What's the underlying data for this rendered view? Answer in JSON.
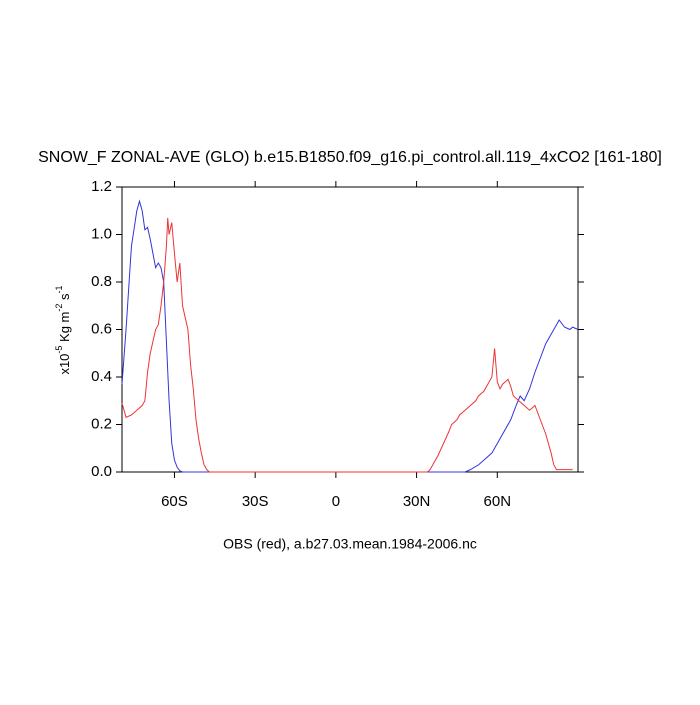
{
  "chart_data": {
    "type": "line",
    "title": "SNOW_F ZONAL-AVE (GLO) b.e15.B1850.f09_g16.pi_control.all.119_4xCO2 [161-180]",
    "xlabel": "OBS (red), a.b27.03.mean.1984-2006.nc",
    "ylabel_parts": [
      "x10",
      "-5",
      " Kg m",
      "-2",
      " s",
      "-1"
    ],
    "xlim": [
      -79.5,
      90
    ],
    "ylim": [
      0,
      1.2
    ],
    "xticks": [
      {
        "value": -60,
        "label": "60S"
      },
      {
        "value": -30,
        "label": "30S"
      },
      0,
      {
        "value": 30,
        "label": "30N"
      },
      {
        "value": 60,
        "label": "60N"
      }
    ],
    "yticks": [
      {
        "value": 0,
        "label": "0.0"
      },
      0.2,
      0.4,
      0.6,
      0.8,
      {
        "value": 1,
        "label": "1.0"
      },
      1.2
    ],
    "series": [
      {
        "color": "#3333dd",
        "x": [
          -79.5,
          -78,
          -76,
          -74,
          -73,
          -72,
          -71,
          -70,
          -69,
          -68,
          -67,
          -66,
          -65,
          -64,
          -63,
          -62,
          -61,
          -60,
          -59,
          -58,
          -57,
          45,
          48,
          50,
          53,
          55,
          58,
          60,
          62,
          65,
          67,
          68.5,
          70,
          72,
          74,
          76,
          78,
          80,
          82,
          83,
          85,
          87,
          88,
          90
        ],
        "values": [
          0.37,
          0.6,
          0.95,
          1.1,
          1.14,
          1.1,
          1.02,
          1.03,
          0.98,
          0.92,
          0.86,
          0.88,
          0.86,
          0.8,
          0.55,
          0.3,
          0.12,
          0.05,
          0.02,
          0.005,
          0,
          0,
          0,
          0.01,
          0.03,
          0.05,
          0.08,
          0.12,
          0.16,
          0.22,
          0.28,
          0.32,
          0.3,
          0.35,
          0.42,
          0.48,
          0.54,
          0.58,
          0.62,
          0.64,
          0.61,
          0.6,
          0.61,
          0.6
        ]
      },
      {
        "color": "#ee3333",
        "x": [
          -79.5,
          -78.5,
          -78,
          -76,
          -74,
          -72,
          -71,
          -70,
          -69,
          -68,
          -67,
          -66,
          -65,
          -64,
          -63,
          -62.5,
          -62,
          -61,
          -60,
          -59,
          -58,
          -57,
          -56,
          -55,
          -54,
          -53,
          -52,
          -51,
          -50,
          -49,
          -48,
          -47,
          34,
          35,
          36,
          38,
          40,
          42,
          43,
          45,
          46,
          48,
          50,
          52,
          53,
          55,
          56,
          58,
          59,
          60,
          61,
          62,
          64,
          65,
          66,
          68,
          70,
          72,
          74,
          76,
          78,
          80,
          81,
          82,
          85,
          88
        ],
        "values": [
          0.29,
          0.25,
          0.23,
          0.24,
          0.26,
          0.28,
          0.3,
          0.42,
          0.5,
          0.55,
          0.6,
          0.62,
          0.7,
          0.8,
          0.95,
          1.07,
          1.0,
          1.05,
          0.92,
          0.8,
          0.88,
          0.7,
          0.65,
          0.6,
          0.45,
          0.35,
          0.22,
          0.14,
          0.08,
          0.03,
          0.01,
          0,
          0,
          0.01,
          0.03,
          0.07,
          0.12,
          0.17,
          0.2,
          0.22,
          0.24,
          0.26,
          0.28,
          0.3,
          0.32,
          0.34,
          0.36,
          0.4,
          0.52,
          0.38,
          0.35,
          0.37,
          0.39,
          0.36,
          0.32,
          0.3,
          0.28,
          0.26,
          0.28,
          0.22,
          0.16,
          0.08,
          0.03,
          0.01,
          0.01,
          0.01
        ]
      }
    ]
  }
}
